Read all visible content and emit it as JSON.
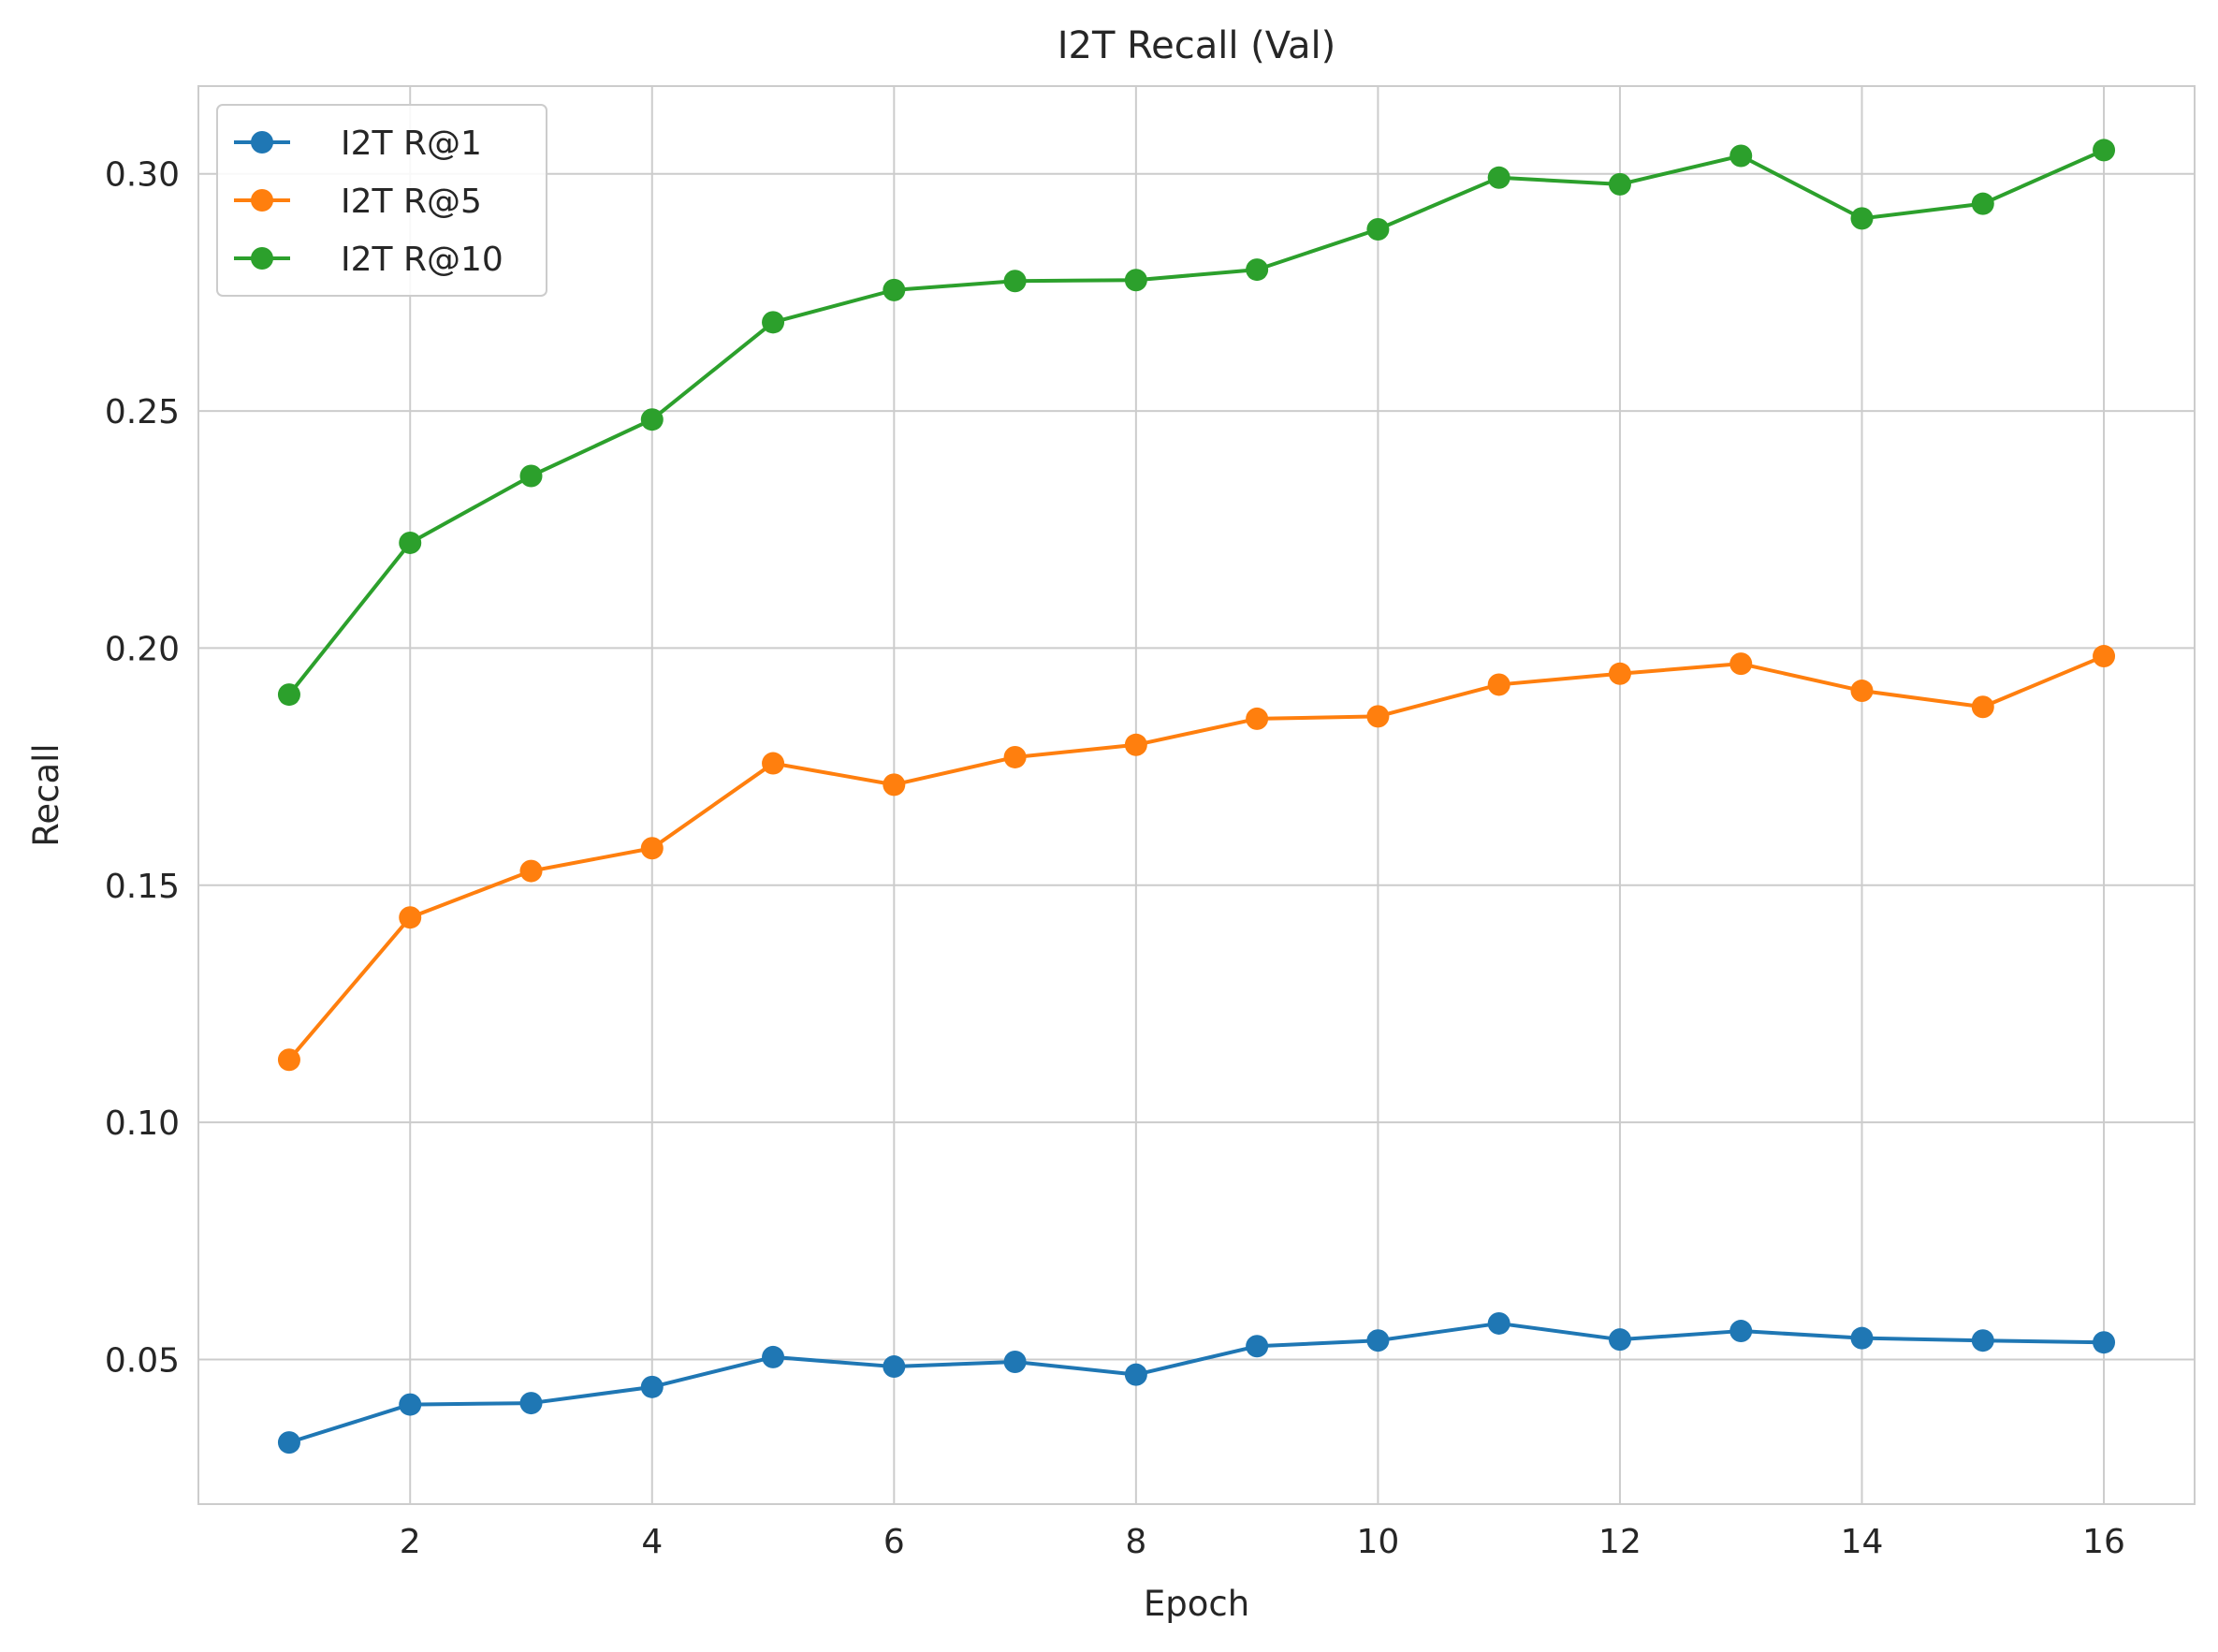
{
  "chart_data": {
    "type": "line",
    "title": "I2T Recall (Val)",
    "xlabel": "Epoch",
    "ylabel": "Recall",
    "x": [
      1,
      2,
      3,
      4,
      5,
      6,
      7,
      8,
      9,
      10,
      11,
      12,
      13,
      14,
      15,
      16
    ],
    "xlim": [
      0.25,
      16.75
    ],
    "ylim": [
      0.0195,
      0.3185
    ],
    "xticks": [
      2,
      4,
      6,
      8,
      10,
      12,
      14,
      16
    ],
    "xtick_labels": [
      "2",
      "4",
      "6",
      "8",
      "10",
      "12",
      "14",
      "16"
    ],
    "yticks": [
      0.05,
      0.1,
      0.15,
      0.2,
      0.25,
      0.3
    ],
    "ytick_labels": [
      "0.05",
      "0.10",
      "0.15",
      "0.20",
      "0.25",
      "0.30"
    ],
    "grid": true,
    "legend_position": "top-left",
    "series": [
      {
        "name": "I2T R@1",
        "color": "#1f77b4",
        "values": [
          0.0325,
          0.0405,
          0.0408,
          0.0442,
          0.0505,
          0.0485,
          0.0495,
          0.0468,
          0.0528,
          0.054,
          0.0576,
          0.0542,
          0.056,
          0.0545,
          0.054,
          0.0536
        ]
      },
      {
        "name": "I2T R@5",
        "color": "#ff7f0e",
        "values": [
          0.1132,
          0.1432,
          0.153,
          0.1578,
          0.1757,
          0.1712,
          0.177,
          0.1796,
          0.1851,
          0.1856,
          0.1923,
          0.1946,
          0.1967,
          0.191,
          0.1876,
          0.1983
        ]
      },
      {
        "name": "I2T R@10",
        "color": "#2ca02c",
        "values": [
          0.1902,
          0.2222,
          0.2363,
          0.2482,
          0.2687,
          0.2755,
          0.2774,
          0.2776,
          0.2798,
          0.2883,
          0.2992,
          0.2978,
          0.3038,
          0.2906,
          0.2937,
          0.305
        ]
      }
    ]
  }
}
